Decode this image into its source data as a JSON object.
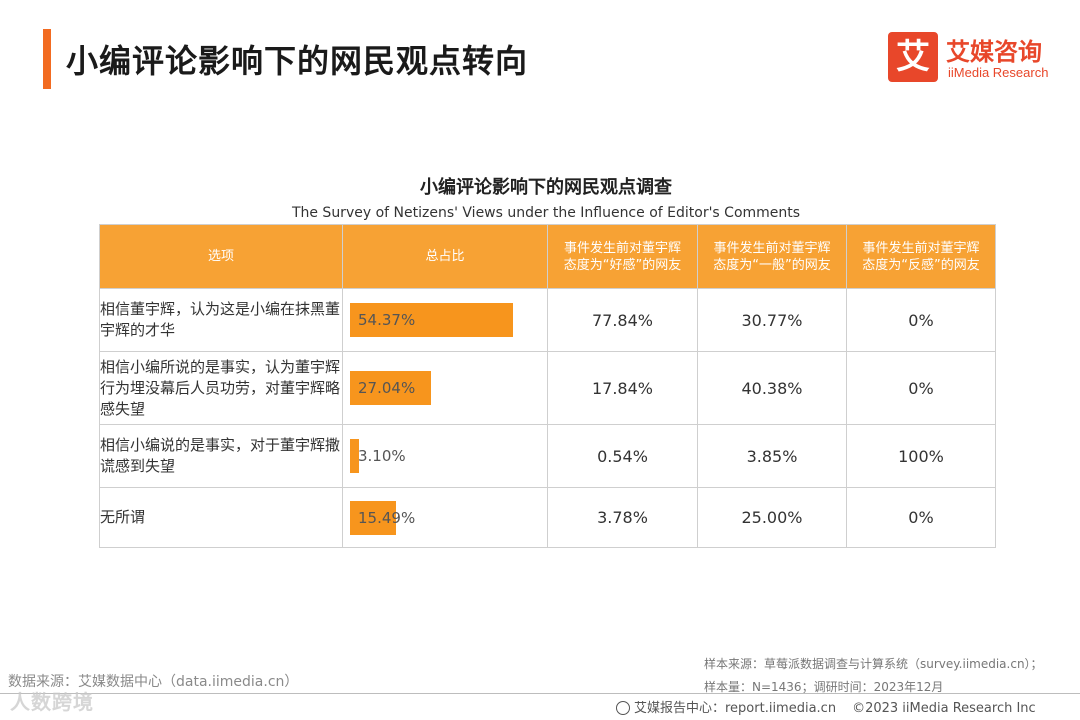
{
  "header": {
    "title": "小编评论影响下的网民观点转向",
    "logo_mark": "艾",
    "logo_cn": "艾媒咨询",
    "logo_en": "iiMedia Research"
  },
  "chart_data": {
    "type": "table",
    "title": "小编评论影响下的网民观点调查",
    "subtitle": "The Survey of Netizens' Views under the Influence of Editor's Comments",
    "columns": [
      "选项",
      "总占比",
      "事件发生前对董宇辉态度为“好感”的网友",
      "事件发生前对董宇辉态度为“一般”的网友",
      "事件发生前对董宇辉态度为“反感”的网友"
    ],
    "rows": [
      {
        "option": "相信董宇辉，认为这是小编在抹黑董宇辉的才华",
        "total": 54.37,
        "total_label": "54.37%",
        "positive": "77.84%",
        "neutral": "30.77%",
        "negative": "0%"
      },
      {
        "option": "相信小编所说的是事实，认为董宇辉行为埋没幕后人员功劳，对董宇辉略感失望",
        "total": 27.04,
        "total_label": "27.04%",
        "positive": "17.84%",
        "neutral": "40.38%",
        "negative": "0%"
      },
      {
        "option": "相信小编说的是事实，对于董宇辉撒谎感到失望",
        "total": 3.1,
        "total_label": "3.10%",
        "positive": "0.54%",
        "neutral": "3.85%",
        "negative": "100%"
      },
      {
        "option": "无所谓",
        "total": 15.49,
        "total_label": "15.49%",
        "positive": "3.78%",
        "neutral": "25.00%",
        "negative": "0%"
      }
    ],
    "bar_color": "#f7951d",
    "header_color": "#f7a234"
  },
  "footer": {
    "data_source": "数据来源：艾媒数据中心（data.iimedia.cn）",
    "sample_source": "样本来源：草莓派数据调查与计算系统（survey.iimedia.cn）；",
    "sample_size": "样本量：N=1436；调研时间：2023年12月",
    "report_center": "艾媒报告中心：report.iimedia.cn",
    "copyright": "©2023  iiMedia Research  Inc",
    "watermark": "人数跨境"
  }
}
